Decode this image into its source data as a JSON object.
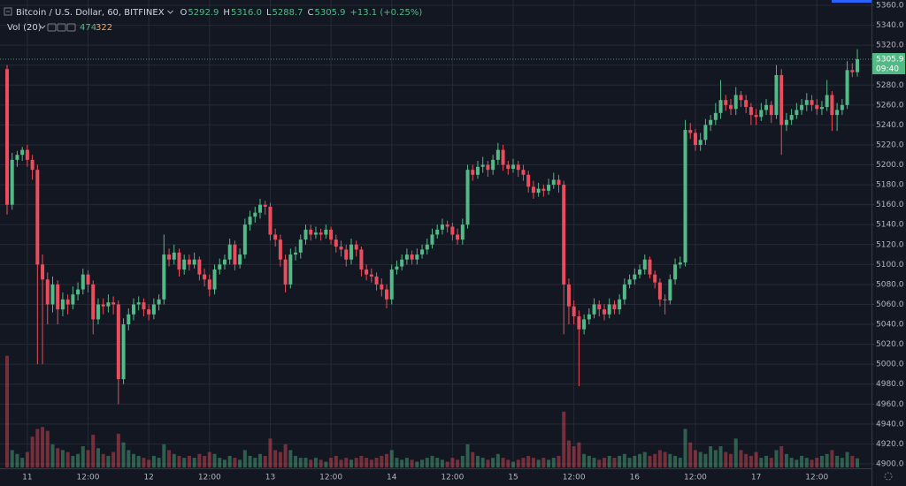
{
  "chart_data": {
    "type": "candlestick",
    "title": "Bitcoin / U.S. Dollar, 60, BITFINEX",
    "legend": [
      {
        "label": "O",
        "value": "5292.9"
      },
      {
        "label": "H",
        "value": "5316.0"
      },
      {
        "label": "L",
        "value": "5288.7"
      },
      {
        "label": "C",
        "value": "5305.9"
      }
    ],
    "change": "+13.1 (+0.25%)",
    "volume_indicator": "Vol (20)",
    "volume_ma": 322,
    "countdown": "09:40",
    "up_color": "#53b987",
    "down_color": "#eb4d5c",
    "grid": true,
    "ylim": [
      4900,
      5360
    ],
    "yticks": [
      {
        "value": 4900,
        "label": "4900.0"
      },
      {
        "value": 4920,
        "label": "4920.0"
      },
      {
        "value": 4940,
        "label": "4940.0"
      },
      {
        "value": 4960,
        "label": "4960.0"
      },
      {
        "value": 4980,
        "label": "4980.0"
      },
      {
        "value": 5000,
        "label": "5000.0"
      },
      {
        "value": 5020,
        "label": "5020.0"
      },
      {
        "value": 5040,
        "label": "5040.0"
      },
      {
        "value": 5060,
        "label": "5060.0"
      },
      {
        "value": 5080,
        "label": "5080.0"
      },
      {
        "value": 5100,
        "label": "5100.0"
      },
      {
        "value": 5120,
        "label": "5120.0"
      },
      {
        "value": 5140,
        "label": "5140.0"
      },
      {
        "value": 5160,
        "label": "5160.0"
      },
      {
        "value": 5180,
        "label": "5180.0"
      },
      {
        "value": 5200,
        "label": "5200.0"
      },
      {
        "value": 5220,
        "label": "5220.0"
      },
      {
        "value": 5240,
        "label": "5240.0"
      },
      {
        "value": 5260,
        "label": "5260.0"
      },
      {
        "value": 5280,
        "label": "5280.0"
      },
      {
        "value": 5300,
        "label": "5300.0"
      },
      {
        "value": 5320,
        "label": "5320.0"
      },
      {
        "value": 5340,
        "label": "5340.0"
      },
      {
        "value": 5360,
        "label": "5360.0"
      }
    ],
    "volume_ylim": [
      0,
      24000
    ],
    "categories": [
      null,
      null,
      null,
      null,
      "11",
      null,
      null,
      null,
      null,
      null,
      null,
      null,
      null,
      null,
      null,
      null,
      "12:00",
      null,
      null,
      null,
      null,
      null,
      null,
      null,
      null,
      null,
      null,
      null,
      "12",
      null,
      null,
      null,
      null,
      null,
      null,
      null,
      null,
      null,
      null,
      null,
      "12:00",
      null,
      null,
      null,
      null,
      null,
      null,
      null,
      null,
      null,
      null,
      null,
      "13",
      null,
      null,
      null,
      null,
      null,
      null,
      null,
      null,
      null,
      null,
      null,
      "12:00",
      null,
      null,
      null,
      null,
      null,
      null,
      null,
      null,
      null,
      null,
      null,
      "14",
      null,
      null,
      null,
      null,
      null,
      null,
      null,
      null,
      null,
      null,
      null,
      "12:00",
      null,
      null,
      null,
      null,
      null,
      null,
      null,
      null,
      null,
      null,
      null,
      "15",
      null,
      null,
      null,
      null,
      null,
      null,
      null,
      null,
      null,
      null,
      null,
      "12:00",
      null,
      null,
      null,
      null,
      null,
      null,
      null,
      null,
      null,
      null,
      null,
      "16",
      null,
      null,
      null,
      null,
      null,
      null,
      null,
      null,
      null,
      null,
      null,
      "12:00",
      null,
      null,
      null,
      null,
      null,
      null,
      null,
      null,
      null,
      null,
      null,
      "17",
      null,
      null,
      null,
      null,
      null,
      null,
      null,
      null,
      null,
      null,
      null,
      "12:00",
      null,
      null,
      null,
      null,
      null,
      null,
      null,
      null
    ],
    "candles": [
      [
        5296,
        5300,
        5150,
        5160
      ],
      [
        5160,
        5212,
        5155,
        5205
      ],
      [
        5205,
        5214,
        5198,
        5210
      ],
      [
        5210,
        5218,
        5204,
        5215
      ],
      [
        5215,
        5220,
        5198,
        5205
      ],
      [
        5205,
        5210,
        5185,
        5195
      ],
      [
        5195,
        5200,
        5000,
        5100
      ],
      [
        5100,
        5110,
        5000,
        5085
      ],
      [
        5085,
        5092,
        5040,
        5060
      ],
      [
        5060,
        5088,
        5052,
        5080
      ],
      [
        5080,
        5084,
        5040,
        5055
      ],
      [
        5055,
        5072,
        5048,
        5065
      ],
      [
        5065,
        5070,
        5050,
        5060
      ],
      [
        5060,
        5078,
        5055,
        5070
      ],
      [
        5070,
        5082,
        5064,
        5075
      ],
      [
        5075,
        5096,
        5070,
        5090
      ],
      [
        5090,
        5094,
        5072,
        5080
      ],
      [
        5080,
        5084,
        5030,
        5045
      ],
      [
        5045,
        5066,
        5040,
        5060
      ],
      [
        5060,
        5066,
        5050,
        5058
      ],
      [
        5058,
        5070,
        5052,
        5062
      ],
      [
        5062,
        5068,
        5050,
        5060
      ],
      [
        5060,
        5064,
        4960,
        4985
      ],
      [
        4985,
        5046,
        4980,
        5040
      ],
      [
        5040,
        5056,
        5034,
        5050
      ],
      [
        5050,
        5066,
        5044,
        5060
      ],
      [
        5060,
        5068,
        5054,
        5062
      ],
      [
        5062,
        5066,
        5048,
        5055
      ],
      [
        5055,
        5060,
        5044,
        5050
      ],
      [
        5050,
        5066,
        5045,
        5060
      ],
      [
        5060,
        5070,
        5054,
        5065
      ],
      [
        5065,
        5130,
        5060,
        5110
      ],
      [
        5110,
        5116,
        5098,
        5105
      ],
      [
        5105,
        5120,
        5100,
        5112
      ],
      [
        5112,
        5116,
        5088,
        5095
      ],
      [
        5095,
        5110,
        5090,
        5105
      ],
      [
        5105,
        5110,
        5094,
        5100
      ],
      [
        5100,
        5112,
        5096,
        5105
      ],
      [
        5105,
        5108,
        5084,
        5090
      ],
      [
        5090,
        5096,
        5078,
        5085
      ],
      [
        5085,
        5090,
        5068,
        5075
      ],
      [
        5075,
        5100,
        5070,
        5095
      ],
      [
        5095,
        5106,
        5090,
        5100
      ],
      [
        5100,
        5110,
        5095,
        5105
      ],
      [
        5105,
        5126,
        5100,
        5120
      ],
      [
        5120,
        5124,
        5094,
        5100
      ],
      [
        5100,
        5116,
        5096,
        5110
      ],
      [
        5110,
        5146,
        5106,
        5140
      ],
      [
        5140,
        5154,
        5134,
        5148
      ],
      [
        5148,
        5158,
        5142,
        5152
      ],
      [
        5152,
        5166,
        5146,
        5160
      ],
      [
        5160,
        5164,
        5150,
        5158
      ],
      [
        5158,
        5162,
        5124,
        5130
      ],
      [
        5130,
        5136,
        5118,
        5125
      ],
      [
        5125,
        5130,
        5098,
        5105
      ],
      [
        5105,
        5110,
        5072,
        5080
      ],
      [
        5080,
        5116,
        5076,
        5110
      ],
      [
        5110,
        5118,
        5104,
        5112
      ],
      [
        5112,
        5130,
        5106,
        5125
      ],
      [
        5125,
        5140,
        5120,
        5135
      ],
      [
        5135,
        5140,
        5124,
        5130
      ],
      [
        5130,
        5138,
        5126,
        5132
      ],
      [
        5132,
        5136,
        5124,
        5130
      ],
      [
        5130,
        5140,
        5126,
        5135
      ],
      [
        5135,
        5138,
        5120,
        5125
      ],
      [
        5125,
        5130,
        5112,
        5118
      ],
      [
        5118,
        5124,
        5108,
        5115
      ],
      [
        5115,
        5120,
        5098,
        5105
      ],
      [
        5105,
        5126,
        5100,
        5120
      ],
      [
        5120,
        5124,
        5108,
        5115
      ],
      [
        5115,
        5118,
        5088,
        5095
      ],
      [
        5095,
        5100,
        5084,
        5090
      ],
      [
        5090,
        5096,
        5082,
        5088
      ],
      [
        5088,
        5092,
        5074,
        5080
      ],
      [
        5080,
        5086,
        5068,
        5075
      ],
      [
        5075,
        5080,
        5056,
        5065
      ],
      [
        5065,
        5100,
        5060,
        5095
      ],
      [
        5095,
        5104,
        5090,
        5098
      ],
      [
        5098,
        5110,
        5094,
        5105
      ],
      [
        5105,
        5116,
        5100,
        5110
      ],
      [
        5110,
        5114,
        5100,
        5105
      ],
      [
        5105,
        5116,
        5100,
        5110
      ],
      [
        5110,
        5120,
        5106,
        5115
      ],
      [
        5115,
        5126,
        5110,
        5120
      ],
      [
        5120,
        5136,
        5116,
        5130
      ],
      [
        5130,
        5140,
        5126,
        5135
      ],
      [
        5135,
        5146,
        5130,
        5140
      ],
      [
        5140,
        5144,
        5132,
        5138
      ],
      [
        5138,
        5142,
        5124,
        5130
      ],
      [
        5130,
        5136,
        5120,
        5125
      ],
      [
        5125,
        5146,
        5120,
        5140
      ],
      [
        5140,
        5200,
        5136,
        5195
      ],
      [
        5195,
        5200,
        5184,
        5190
      ],
      [
        5190,
        5204,
        5186,
        5198
      ],
      [
        5198,
        5208,
        5192,
        5200
      ],
      [
        5200,
        5204,
        5188,
        5195
      ],
      [
        5195,
        5210,
        5190,
        5205
      ],
      [
        5205,
        5222,
        5200,
        5215
      ],
      [
        5215,
        5220,
        5194,
        5200
      ],
      [
        5200,
        5204,
        5190,
        5196
      ],
      [
        5196,
        5206,
        5192,
        5200
      ],
      [
        5200,
        5204,
        5188,
        5195
      ],
      [
        5195,
        5200,
        5184,
        5190
      ],
      [
        5190,
        5194,
        5172,
        5178
      ],
      [
        5178,
        5184,
        5166,
        5172
      ],
      [
        5172,
        5182,
        5168,
        5176
      ],
      [
        5176,
        5180,
        5168,
        5174
      ],
      [
        5174,
        5186,
        5170,
        5180
      ],
      [
        5180,
        5192,
        5176,
        5185
      ],
      [
        5185,
        5190,
        5172,
        5180
      ],
      [
        5180,
        5184,
        5030,
        5080
      ],
      [
        5080,
        5086,
        5040,
        5058
      ],
      [
        5058,
        5064,
        5040,
        5048
      ],
      [
        5048,
        5054,
        4978,
        5035
      ],
      [
        5035,
        5050,
        5030,
        5045
      ],
      [
        5045,
        5056,
        5040,
        5050
      ],
      [
        5050,
        5066,
        5046,
        5060
      ],
      [
        5060,
        5064,
        5048,
        5055
      ],
      [
        5055,
        5060,
        5044,
        5050
      ],
      [
        5050,
        5066,
        5046,
        5060
      ],
      [
        5060,
        5064,
        5050,
        5055
      ],
      [
        5055,
        5070,
        5050,
        5065
      ],
      [
        5065,
        5086,
        5060,
        5080
      ],
      [
        5080,
        5090,
        5076,
        5085
      ],
      [
        5085,
        5096,
        5080,
        5090
      ],
      [
        5090,
        5100,
        5086,
        5095
      ],
      [
        5095,
        5110,
        5090,
        5105
      ],
      [
        5105,
        5108,
        5086,
        5090
      ],
      [
        5090,
        5094,
        5076,
        5082
      ],
      [
        5082,
        5086,
        5058,
        5065
      ],
      [
        5065,
        5070,
        5050,
        5064
      ],
      [
        5064,
        5090,
        5060,
        5085
      ],
      [
        5085,
        5106,
        5080,
        5100
      ],
      [
        5100,
        5108,
        5096,
        5102
      ],
      [
        5102,
        5245,
        5098,
        5235
      ],
      [
        5235,
        5242,
        5226,
        5232
      ],
      [
        5232,
        5236,
        5214,
        5220
      ],
      [
        5220,
        5232,
        5214,
        5225
      ],
      [
        5225,
        5246,
        5220,
        5240
      ],
      [
        5240,
        5250,
        5234,
        5245
      ],
      [
        5245,
        5262,
        5240,
        5252
      ],
      [
        5252,
        5285,
        5246,
        5265
      ],
      [
        5265,
        5270,
        5254,
        5260
      ],
      [
        5260,
        5266,
        5250,
        5256
      ],
      [
        5256,
        5278,
        5250,
        5270
      ],
      [
        5270,
        5274,
        5258,
        5265
      ],
      [
        5265,
        5270,
        5252,
        5258
      ],
      [
        5258,
        5262,
        5240,
        5250
      ],
      [
        5250,
        5256,
        5240,
        5248
      ],
      [
        5248,
        5262,
        5244,
        5255
      ],
      [
        5255,
        5266,
        5250,
        5260
      ],
      [
        5260,
        5264,
        5242,
        5250
      ],
      [
        5250,
        5300,
        5246,
        5290
      ],
      [
        5290,
        5296,
        5210,
        5240
      ],
      [
        5240,
        5252,
        5234,
        5245
      ],
      [
        5245,
        5256,
        5240,
        5250
      ],
      [
        5250,
        5262,
        5246,
        5255
      ],
      [
        5255,
        5266,
        5250,
        5260
      ],
      [
        5260,
        5272,
        5254,
        5265
      ],
      [
        5265,
        5270,
        5254,
        5260
      ],
      [
        5260,
        5266,
        5250,
        5256
      ],
      [
        5256,
        5264,
        5250,
        5258
      ],
      [
        5258,
        5285,
        5254,
        5270
      ],
      [
        5270,
        5274,
        5234,
        5250
      ],
      [
        5250,
        5262,
        5234,
        5255
      ],
      [
        5255,
        5266,
        5250,
        5260
      ],
      [
        5260,
        5304,
        5256,
        5295
      ],
      [
        5295,
        5302,
        5288,
        5292.9
      ],
      [
        5292.9,
        5316,
        5288.7,
        5305.9
      ]
    ],
    "volume": [
      5800,
      900,
      700,
      500,
      800,
      1600,
      2000,
      2100,
      1900,
      1200,
      1000,
      900,
      800,
      600,
      700,
      1100,
      900,
      1700,
      1000,
      700,
      600,
      800,
      1750,
      1300,
      900,
      700,
      600,
      500,
      400,
      600,
      500,
      1200,
      900,
      700,
      600,
      500,
      600,
      500,
      700,
      600,
      800,
      700,
      500,
      400,
      600,
      500,
      400,
      900,
      600,
      500,
      700,
      600,
      1500,
      900,
      800,
      1200,
      900,
      600,
      500,
      500,
      400,
      500,
      400,
      300,
      500,
      600,
      400,
      500,
      400,
      500,
      600,
      500,
      400,
      500,
      600,
      700,
      900,
      500,
      400,
      500,
      400,
      300,
      400,
      500,
      600,
      500,
      400,
      300,
      500,
      400,
      600,
      1200,
      800,
      600,
      500,
      400,
      500,
      700,
      500,
      400,
      300,
      400,
      500,
      600,
      500,
      400,
      500,
      400,
      500,
      600,
      2900,
      1400,
      1100,
      1300,
      700,
      600,
      500,
      400,
      500,
      600,
      500,
      600,
      700,
      500,
      600,
      700,
      800,
      600,
      700,
      900,
      800,
      700,
      600,
      500,
      2000,
      1300,
      900,
      800,
      700,
      1100,
      900,
      1100,
      800,
      700,
      1500,
      900,
      700,
      600,
      800,
      500,
      600,
      500,
      900,
      1100,
      700,
      500,
      400,
      600,
      500,
      400,
      500,
      600,
      700,
      900,
      600,
      500,
      800,
      600,
      474
    ]
  }
}
